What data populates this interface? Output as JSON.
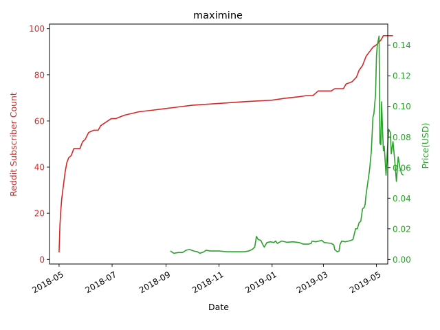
{
  "chart_data": {
    "type": "line",
    "title": "maximine",
    "xlabel": "Date",
    "x_ticks": [
      "2018-05",
      "2018-07",
      "2018-09",
      "2018-11",
      "2019-01",
      "2019-03",
      "2019-05"
    ],
    "xlim": [
      "2018-04-20",
      "2019-05-14"
    ],
    "left_axis": {
      "label": "Reddit Subscriber Count",
      "color": "#d62728",
      "ylim": [
        -2,
        102
      ],
      "ticks": [
        0,
        20,
        40,
        60,
        80,
        100
      ]
    },
    "right_axis": {
      "label": "Price(USD)",
      "color": "#2ca02c",
      "ylim": [
        -0.003,
        0.1538
      ],
      "ticks": [
        0.0,
        0.02,
        0.04,
        0.06,
        0.08,
        0.1,
        0.12,
        0.14
      ],
      "tick_labels": [
        "0.00",
        "0.02",
        "0.04",
        "0.06",
        "0.08",
        "0.10",
        "0.12",
        "0.14"
      ]
    },
    "series": [
      {
        "axis": "left",
        "color": "#d62728",
        "points": [
          [
            "2018-05-01",
            3
          ],
          [
            "2018-05-02",
            15
          ],
          [
            "2018-05-03",
            21
          ],
          [
            "2018-05-04",
            26
          ],
          [
            "2018-05-06",
            32
          ],
          [
            "2018-05-08",
            38
          ],
          [
            "2018-05-10",
            42
          ],
          [
            "2018-05-12",
            44
          ],
          [
            "2018-05-15",
            45
          ],
          [
            "2018-05-18",
            48
          ],
          [
            "2018-05-25",
            48
          ],
          [
            "2018-05-28",
            51
          ],
          [
            "2018-05-31",
            52
          ],
          [
            "2018-06-04",
            55
          ],
          [
            "2018-06-10",
            56
          ],
          [
            "2018-06-15",
            56
          ],
          [
            "2018-06-18",
            58
          ],
          [
            "2018-06-22",
            59
          ],
          [
            "2018-06-30",
            61
          ],
          [
            "2018-07-05",
            61
          ],
          [
            "2018-07-15",
            62.5
          ],
          [
            "2018-08-01",
            64
          ],
          [
            "2018-08-15",
            64.6
          ],
          [
            "2018-09-01",
            65.4
          ],
          [
            "2018-10-01",
            66.8
          ],
          [
            "2018-11-01",
            67.6
          ],
          [
            "2018-12-01",
            68.4
          ],
          [
            "2019-01-01",
            69
          ],
          [
            "2019-01-15",
            69.8
          ],
          [
            "2019-02-01",
            70.5
          ],
          [
            "2019-02-10",
            71
          ],
          [
            "2019-02-17",
            71
          ],
          [
            "2019-02-23",
            73
          ],
          [
            "2019-03-10",
            73
          ],
          [
            "2019-03-14",
            74
          ],
          [
            "2019-03-24",
            74
          ],
          [
            "2019-03-27",
            76
          ],
          [
            "2019-04-03",
            77
          ],
          [
            "2019-04-08",
            79
          ],
          [
            "2019-04-11",
            82
          ],
          [
            "2019-04-15",
            84
          ],
          [
            "2019-04-19",
            88
          ],
          [
            "2019-04-23",
            90
          ],
          [
            "2019-04-27",
            92
          ],
          [
            "2019-05-01",
            93
          ],
          [
            "2019-05-06",
            95
          ],
          [
            "2019-05-09",
            97
          ],
          [
            "2019-05-20",
            97
          ]
        ]
      },
      {
        "axis": "right",
        "color": "#2ca02c",
        "points": [
          [
            "2018-09-06",
            0.0055
          ],
          [
            "2018-09-10",
            0.004
          ],
          [
            "2018-09-15",
            0.0045
          ],
          [
            "2018-09-20",
            0.0045
          ],
          [
            "2018-09-24",
            0.006
          ],
          [
            "2018-09-28",
            0.0065
          ],
          [
            "2018-10-03",
            0.0055
          ],
          [
            "2018-10-07",
            0.005
          ],
          [
            "2018-10-10",
            0.004
          ],
          [
            "2018-10-14",
            0.0048
          ],
          [
            "2018-10-17",
            0.006
          ],
          [
            "2018-10-22",
            0.0055
          ],
          [
            "2018-11-01",
            0.0055
          ],
          [
            "2018-11-10",
            0.005
          ],
          [
            "2018-11-20",
            0.005
          ],
          [
            "2018-11-30",
            0.005
          ],
          [
            "2018-12-05",
            0.0055
          ],
          [
            "2018-12-09",
            0.0065
          ],
          [
            "2018-12-12",
            0.008
          ],
          [
            "2018-12-14",
            0.015
          ],
          [
            "2018-12-16",
            0.013
          ],
          [
            "2018-12-19",
            0.0125
          ],
          [
            "2018-12-21",
            0.01
          ],
          [
            "2018-12-23",
            0.008
          ],
          [
            "2018-12-26",
            0.011
          ],
          [
            "2018-12-30",
            0.0115
          ],
          [
            "2019-01-03",
            0.011
          ],
          [
            "2019-01-05",
            0.012
          ],
          [
            "2019-01-07",
            0.0105
          ],
          [
            "2019-01-12",
            0.012
          ],
          [
            "2019-01-18",
            0.0112
          ],
          [
            "2019-01-25",
            0.0115
          ],
          [
            "2019-02-01",
            0.011
          ],
          [
            "2019-02-06",
            0.01
          ],
          [
            "2019-02-12",
            0.01
          ],
          [
            "2019-02-15",
            0.0105
          ],
          [
            "2019-02-16",
            0.012
          ],
          [
            "2019-02-20",
            0.0115
          ],
          [
            "2019-02-24",
            0.012
          ],
          [
            "2019-02-27",
            0.0125
          ],
          [
            "2019-03-02",
            0.011
          ],
          [
            "2019-03-10",
            0.0105
          ],
          [
            "2019-03-13",
            0.0095
          ],
          [
            "2019-03-14",
            0.0065
          ],
          [
            "2019-03-17",
            0.005
          ],
          [
            "2019-03-19",
            0.0055
          ],
          [
            "2019-03-20",
            0.0095
          ],
          [
            "2019-03-22",
            0.012
          ],
          [
            "2019-03-26",
            0.0115
          ],
          [
            "2019-03-30",
            0.012
          ],
          [
            "2019-04-02",
            0.0125
          ],
          [
            "2019-04-04",
            0.013
          ],
          [
            "2019-04-07",
            0.02
          ],
          [
            "2019-04-09",
            0.02
          ],
          [
            "2019-04-11",
            0.024
          ],
          [
            "2019-04-13",
            0.025
          ],
          [
            "2019-04-15",
            0.033
          ],
          [
            "2019-04-17",
            0.034
          ],
          [
            "2019-04-18",
            0.036
          ],
          [
            "2019-04-19",
            0.042
          ],
          [
            "2019-04-21",
            0.05
          ],
          [
            "2019-04-23",
            0.058
          ],
          [
            "2019-04-25",
            0.07
          ],
          [
            "2019-04-27",
            0.093
          ],
          [
            "2019-04-28",
            0.095
          ],
          [
            "2019-04-30",
            0.108
          ],
          [
            "2019-05-01",
            0.133
          ],
          [
            "2019-05-02",
            0.14
          ],
          [
            "2019-05-04",
            0.146
          ],
          [
            "2019-05-05",
            0.076
          ],
          [
            "2019-05-06",
            0.075
          ],
          [
            "2019-05-07",
            0.103
          ],
          [
            "2019-05-08",
            0.085
          ],
          [
            "2019-05-09",
            0.071
          ],
          [
            "2019-05-10",
            0.074
          ],
          [
            "2019-05-12",
            0.055
          ],
          [
            "2019-05-14",
            0.075
          ],
          [
            "2019-05-15",
            0.085
          ],
          [
            "2019-05-17",
            0.083
          ],
          [
            "2019-05-18",
            0.069
          ],
          [
            "2019-05-20",
            0.077
          ],
          [
            "2019-05-22",
            0.065
          ],
          [
            "2019-05-24",
            0.051
          ],
          [
            "2019-05-26",
            0.067
          ],
          [
            "2019-05-28",
            0.06
          ],
          [
            "2019-05-30",
            0.056
          ],
          [
            "2019-06-01",
            0.055
          ]
        ]
      }
    ]
  }
}
